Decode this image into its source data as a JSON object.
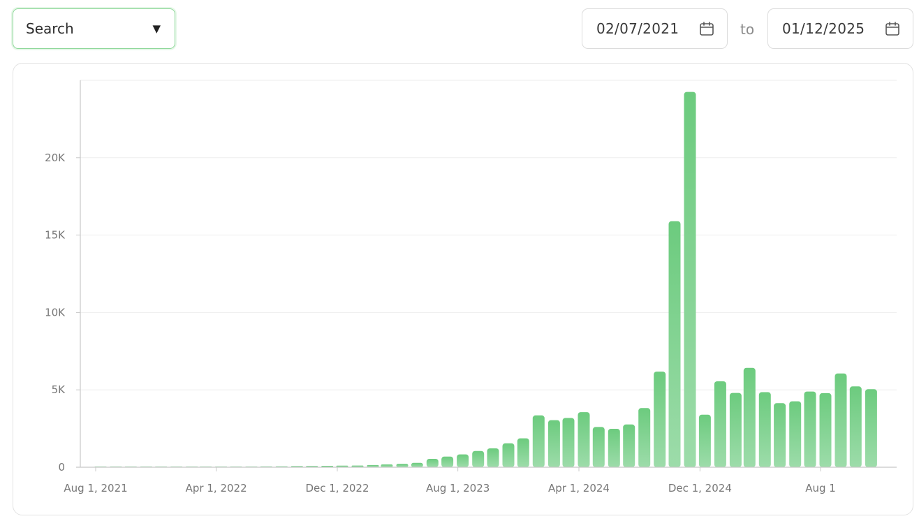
{
  "controls": {
    "metric_select": {
      "value": "Search",
      "caret": "▼"
    },
    "date_from": "02/07/2021",
    "date_separator": "to",
    "date_to": "01/12/2025"
  },
  "colors": {
    "bar_top": "#6ccb7e",
    "bar_bottom": "#9ddcaa",
    "grid": "#eeeeee",
    "axis": "#c8c8c8",
    "tick_text": "#777777",
    "accent_border": "#8fd89a"
  },
  "icons": {
    "calendar": "calendar-icon",
    "caret": "caret-down-icon"
  },
  "chart_data": {
    "type": "bar",
    "grid": true,
    "ylim": [
      0,
      25000
    ],
    "yticks": [
      {
        "value": 0,
        "label": "0"
      },
      {
        "value": 5000,
        "label": "5K"
      },
      {
        "value": 10000,
        "label": "10K"
      },
      {
        "value": 15000,
        "label": "15K"
      },
      {
        "value": 20000,
        "label": "20K"
      }
    ],
    "xticks": [
      {
        "date": "2021-08-01",
        "label": "Aug 1, 2021"
      },
      {
        "date": "2022-04-01",
        "label": "Apr 1, 2022"
      },
      {
        "date": "2022-12-01",
        "label": "Dec 1, 2022"
      },
      {
        "date": "2023-08-01",
        "label": "Aug 1, 2023"
      },
      {
        "date": "2024-04-01",
        "label": "Apr 1, 2024"
      },
      {
        "date": "2024-12-01",
        "label": "Dec 1, 2024"
      },
      {
        "date": "2025-08-01",
        "label": "Aug 1"
      }
    ],
    "categories": [
      "2021-08-01",
      "2021-09-01",
      "2021-10-01",
      "2021-11-01",
      "2021-12-01",
      "2022-01-01",
      "2022-02-01",
      "2022-03-01",
      "2022-04-01",
      "2022-05-01",
      "2022-06-01",
      "2022-07-01",
      "2022-08-01",
      "2022-09-01",
      "2022-10-01",
      "2022-11-01",
      "2022-12-01",
      "2023-01-01",
      "2023-02-01",
      "2023-03-01",
      "2023-04-01",
      "2023-05-01",
      "2023-06-01",
      "2023-07-01",
      "2023-08-01",
      "2023-09-01",
      "2023-10-01",
      "2023-11-01",
      "2023-12-01",
      "2024-01-01",
      "2024-02-01",
      "2024-03-01",
      "2024-04-01",
      "2024-05-01",
      "2024-06-01",
      "2024-07-01",
      "2024-08-01",
      "2024-09-01",
      "2024-10-01",
      "2024-11-01",
      "2024-12-01",
      "2025-01-01",
      "2025-02-01",
      "2025-03-01",
      "2025-04-01",
      "2025-05-01",
      "2025-06-01",
      "2025-07-01",
      "2025-08-01",
      "2025-09-01",
      "2025-10-01",
      "2025-11-01"
    ],
    "values": [
      5,
      8,
      15,
      10,
      20,
      25,
      30,
      20,
      15,
      20,
      40,
      50,
      60,
      70,
      80,
      90,
      100,
      110,
      140,
      180,
      220,
      280,
      540,
      690,
      830,
      1050,
      1220,
      1550,
      1870,
      3350,
      3040,
      3180,
      3560,
      2600,
      2480,
      2760,
      3820,
      6180,
      15900,
      24250,
      3400,
      5550,
      4800,
      6420,
      4850,
      4140,
      4260,
      4890,
      4790,
      6060,
      5220,
      5040
    ]
  }
}
